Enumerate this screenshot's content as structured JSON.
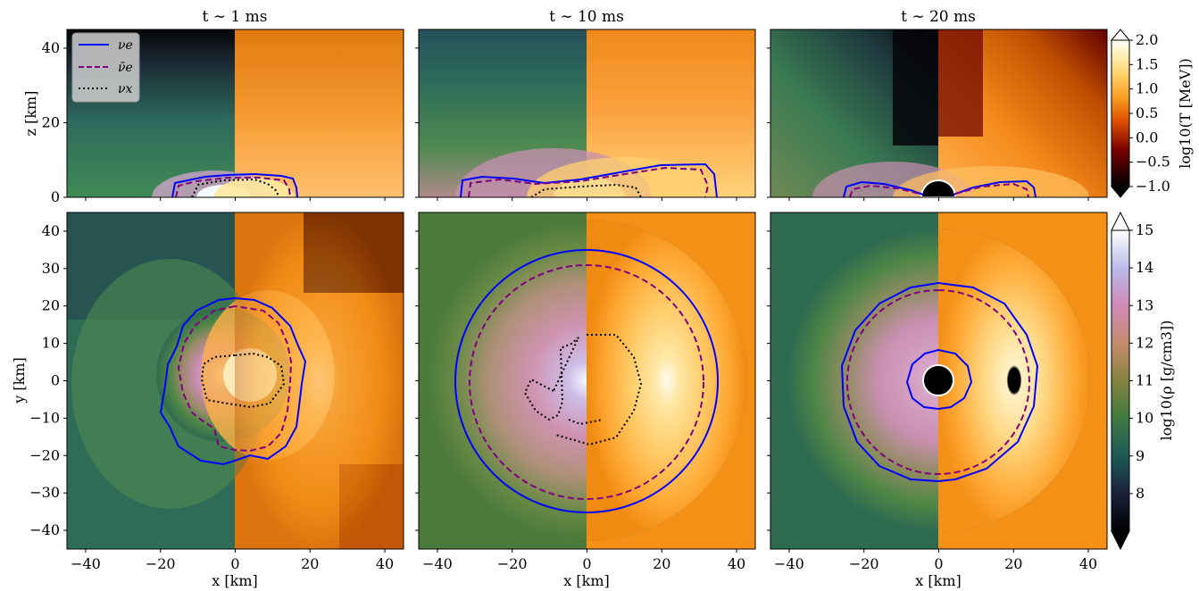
{
  "chart_data": {
    "type": "heatmap",
    "panel_titles": [
      "t ∼ 1 ms",
      "t ∼ 10 ms",
      "t ∼ 20 ms"
    ],
    "xlabel": "x [km]",
    "top_ylabel": "z [km]",
    "bottom_ylabel": "y [km]",
    "xlim": [
      -45,
      45
    ],
    "top_ylim": [
      0,
      45
    ],
    "bottom_ylim": [
      -45,
      45
    ],
    "x_ticks": [
      -40,
      -20,
      0,
      20,
      40
    ],
    "x_tick_labels": [
      "−40",
      "−20",
      "0",
      "20",
      "40"
    ],
    "top_y_ticks": [
      0,
      20,
      40
    ],
    "top_y_tick_labels": [
      "0",
      "20",
      "40"
    ],
    "bottom_y_ticks": [
      -40,
      -30,
      -20,
      -10,
      0,
      10,
      20,
      30,
      40
    ],
    "bottom_y_tick_labels": [
      "−40",
      "−30",
      "−20",
      "−10",
      "0",
      "10",
      "20",
      "30",
      "40"
    ],
    "colorbars": [
      {
        "label": "log10(T [MeV])",
        "range": [
          -1.0,
          2.0
        ],
        "ticks": [
          -1.0,
          -0.5,
          0.0,
          0.5,
          1.0,
          1.5,
          2.0
        ],
        "tick_labels": [
          "−1.0",
          "−0.5",
          "0.0",
          "0.5",
          "1.0",
          "1.5",
          "2.0"
        ],
        "cmap": "afmhot"
      },
      {
        "label": "log10(ρ [g/cm3])",
        "range": [
          7,
          15
        ],
        "ticks": [
          8,
          9,
          10,
          11,
          12,
          13,
          14,
          15
        ],
        "tick_labels": [
          "8",
          "9",
          "10",
          "11",
          "12",
          "13",
          "14",
          "15"
        ],
        "cmap": "cubehelix"
      }
    ],
    "legend": {
      "placement": "upper-left of first panel",
      "entries": [
        {
          "label": "νe",
          "style": "solid",
          "color": "#0000ff"
        },
        {
          "label": "ν̄e",
          "style": "dashed",
          "color": "#800080"
        },
        {
          "label": "νx",
          "style": "dotted",
          "color": "#000000"
        }
      ]
    },
    "series_description": "Left half of each panel shows density (cubehelix), right half shows temperature (afmhot); contours mark neutrinosphere surfaces.",
    "neutrinosphere_radii_km": {
      "t1": {
        "nue": 20,
        "nuebar": 17,
        "nux": 8
      },
      "t10": {
        "nue": 35,
        "nuebar": 31,
        "nux": 13
      },
      "t20": {
        "nue": 26,
        "nuebar": 24,
        "bh_inner": 8
      }
    },
    "meridional_heights_km": {
      "t1": {
        "nue": 6,
        "nuebar": 5,
        "nux": 4
      },
      "t10": {
        "nue": 8,
        "nuebar": 7,
        "nux": 3
      },
      "t20": {
        "nue": 4,
        "nuebar": 4
      }
    },
    "colors": {
      "nue": "#0000ff",
      "nuebar": "#800080",
      "nux": "#000000"
    }
  }
}
